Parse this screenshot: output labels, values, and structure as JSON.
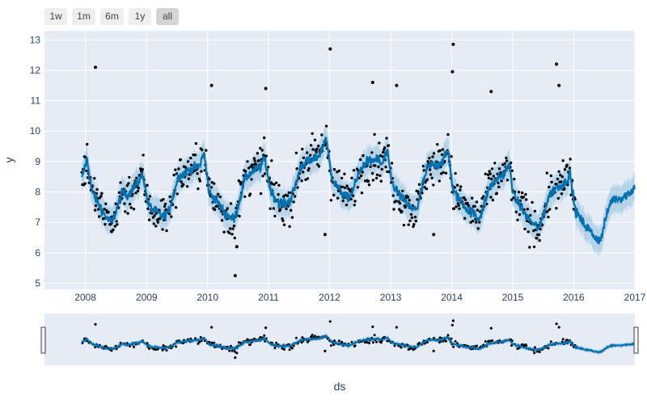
{
  "range_buttons": [
    {
      "label": "1w",
      "active": false
    },
    {
      "label": "1m",
      "active": false
    },
    {
      "label": "6m",
      "active": false
    },
    {
      "label": "1y",
      "active": false
    },
    {
      "label": "all",
      "active": true
    }
  ],
  "colors": {
    "plot_bg": "#e5ecf6",
    "grid": "#ffffff",
    "forecast_line": "#0072b2",
    "uncertainty_band": "rgba(0,114,178,0.2)",
    "observed_points": "#000000",
    "text": "#2a3f5f"
  },
  "chart_data": {
    "type": "line",
    "xlabel": "ds",
    "ylabel": "y",
    "xlim": [
      "2007-05-01",
      "2017-01-01"
    ],
    "ylim": [
      4.8,
      13.3
    ],
    "x_ticks": [
      "2008",
      "2009",
      "2010",
      "2011",
      "2012",
      "2013",
      "2014",
      "2015",
      "2016",
      "2017"
    ],
    "y_ticks": [
      5,
      6,
      7,
      8,
      9,
      10,
      11,
      12,
      13
    ],
    "grid": true,
    "range_slider": true,
    "forecast": {
      "x": [
        "2007-12-10",
        "2008-01-10",
        "2008-02-10",
        "2008-03-10",
        "2008-04-10",
        "2008-05-10",
        "2008-06-10",
        "2008-07-10",
        "2008-08-10",
        "2008-09-10",
        "2008-10-10",
        "2008-11-10",
        "2008-12-10",
        "2009-01-10",
        "2009-02-10",
        "2009-03-10",
        "2009-04-10",
        "2009-05-10",
        "2009-06-10",
        "2009-07-10",
        "2009-08-10",
        "2009-09-10",
        "2009-10-10",
        "2009-11-10",
        "2009-12-10",
        "2010-01-10",
        "2010-02-10",
        "2010-03-10",
        "2010-04-10",
        "2010-05-10",
        "2010-06-10",
        "2010-07-10",
        "2010-08-10",
        "2010-09-10",
        "2010-10-10",
        "2010-11-10",
        "2010-12-10",
        "2011-01-10",
        "2011-02-10",
        "2011-03-10",
        "2011-04-10",
        "2011-05-10",
        "2011-06-10",
        "2011-07-10",
        "2011-08-10",
        "2011-09-10",
        "2011-10-10",
        "2011-11-10",
        "2011-12-10",
        "2012-01-10",
        "2012-02-10",
        "2012-03-10",
        "2012-04-10",
        "2012-05-10",
        "2012-06-10",
        "2012-07-10",
        "2012-08-10",
        "2012-09-10",
        "2012-10-10",
        "2012-11-10",
        "2012-12-10",
        "2013-01-10",
        "2013-02-10",
        "2013-03-10",
        "2013-04-10",
        "2013-05-10",
        "2013-06-10",
        "2013-07-10",
        "2013-08-10",
        "2013-09-10",
        "2013-10-10",
        "2013-11-10",
        "2013-12-10",
        "2014-01-10",
        "2014-02-10",
        "2014-03-10",
        "2014-04-10",
        "2014-05-10",
        "2014-06-10",
        "2014-07-10",
        "2014-08-10",
        "2014-09-10",
        "2014-10-10",
        "2014-11-10",
        "2014-12-10",
        "2015-01-10",
        "2015-02-10",
        "2015-03-10",
        "2015-04-10",
        "2015-05-10",
        "2015-06-10",
        "2015-07-10",
        "2015-08-10",
        "2015-09-10",
        "2015-10-10",
        "2015-11-10",
        "2015-12-10",
        "2016-01-10",
        "2016-02-10",
        "2016-03-10",
        "2016-04-10",
        "2016-05-10",
        "2016-06-10",
        "2016-07-10",
        "2016-08-10",
        "2016-09-10",
        "2016-10-10",
        "2016-11-10",
        "2016-12-10",
        "2017-01-01"
      ],
      "yhat": [
        8.4,
        9.1,
        8.0,
        7.7,
        7.4,
        7.1,
        7.0,
        7.5,
        8.0,
        7.9,
        8.1,
        8.3,
        8.6,
        7.6,
        7.4,
        7.3,
        7.2,
        7.3,
        7.9,
        8.5,
        8.6,
        8.7,
        8.8,
        8.8,
        9.3,
        8.0,
        7.8,
        7.6,
        7.3,
        7.2,
        7.1,
        7.7,
        8.4,
        8.6,
        8.7,
        8.8,
        9.1,
        8.1,
        7.8,
        7.6,
        7.6,
        7.7,
        8.2,
        8.8,
        9.0,
        9.0,
        9.1,
        9.3,
        9.8,
        8.6,
        8.2,
        8.0,
        7.8,
        7.9,
        8.4,
        8.8,
        9.0,
        9.0,
        9.1,
        8.9,
        9.3,
        8.3,
        8.0,
        7.8,
        7.6,
        7.4,
        7.5,
        8.2,
        8.8,
        8.9,
        8.9,
        9.0,
        9.4,
        8.0,
        7.8,
        7.6,
        7.4,
        7.3,
        7.1,
        7.5,
        8.1,
        8.3,
        8.5,
        8.6,
        8.9,
        7.8,
        7.6,
        7.3,
        7.1,
        6.9,
        6.8,
        7.4,
        7.9,
        8.1,
        8.2,
        8.3,
        8.6,
        7.4,
        7.1,
        6.9,
        6.7,
        6.5,
        6.4,
        7.1,
        7.7,
        7.8,
        7.8,
        7.9,
        8.0,
        8.2
      ],
      "band_halfwidth": 0.45
    },
    "observed": {
      "x_start": "2007-12-10",
      "x_end": "2016-01-20",
      "notable": [
        {
          "x": "2008-03-01",
          "y": 12.1
        },
        {
          "x": "2010-01-25",
          "y": 11.5
        },
        {
          "x": "2010-06-15",
          "y": 5.25
        },
        {
          "x": "2010-12-15",
          "y": 11.4
        },
        {
          "x": "2012-01-05",
          "y": 12.7
        },
        {
          "x": "2011-12-05",
          "y": 6.6
        },
        {
          "x": "2012-09-15",
          "y": 11.6
        },
        {
          "x": "2013-02-05",
          "y": 11.5
        },
        {
          "x": "2014-01-10",
          "y": 12.85
        },
        {
          "x": "2014-01-05",
          "y": 11.95
        },
        {
          "x": "2013-09-15",
          "y": 6.6
        },
        {
          "x": "2014-08-25",
          "y": 11.3
        },
        {
          "x": "2015-09-20",
          "y": 12.2
        },
        {
          "x": "2015-10-05",
          "y": 11.5
        },
        {
          "x": "2008-06-05",
          "y": 6.7
        },
        {
          "x": "2010-06-25",
          "y": 6.2
        }
      ]
    }
  }
}
